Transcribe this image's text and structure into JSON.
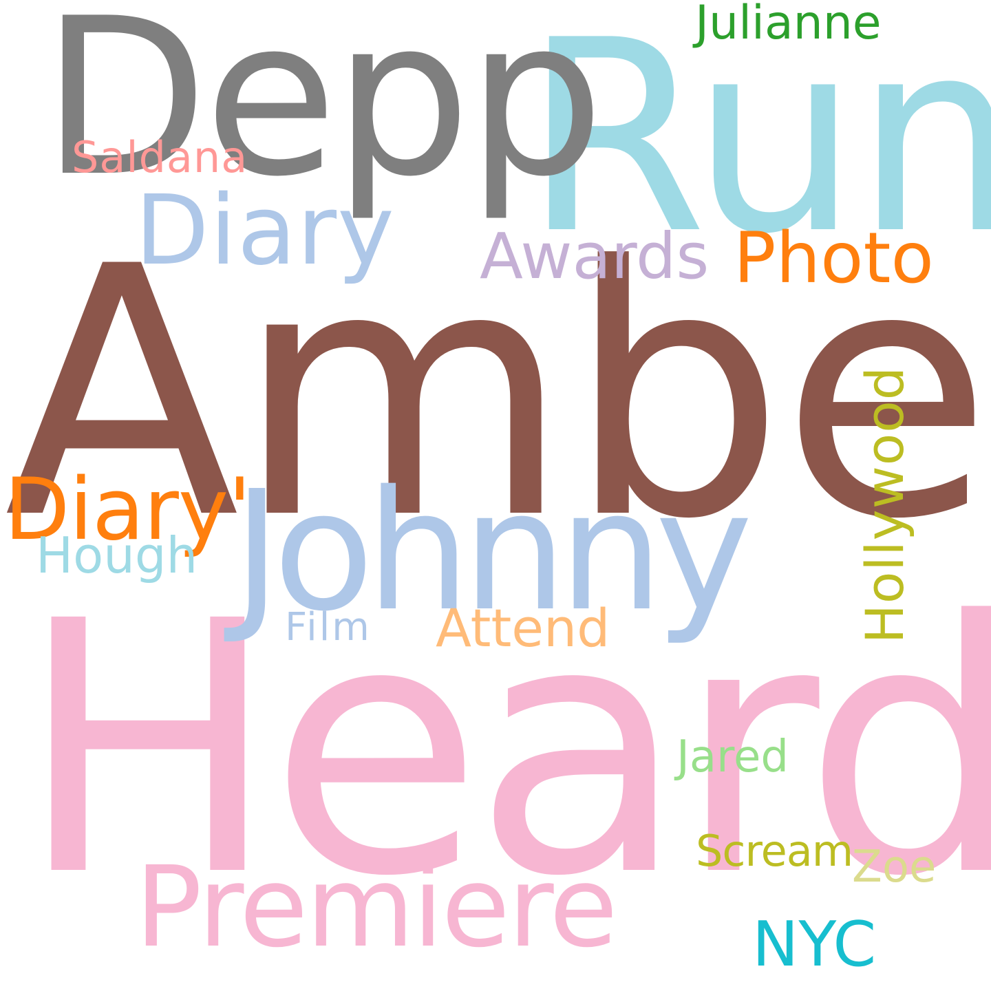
{
  "words": [
    {
      "id": "amber",
      "text": "Amber",
      "color": "#8c564b"
    },
    {
      "id": "heard",
      "text": "Heard",
      "color": "#f7b6d2"
    },
    {
      "id": "rum",
      "text": "Rum",
      "color": "#9edae5"
    },
    {
      "id": "depp",
      "text": "Depp",
      "color": "#7f7f7f"
    },
    {
      "id": "johnny",
      "text": "Johnny",
      "color": "#aec7e8"
    },
    {
      "id": "premiere",
      "text": "Premiere",
      "color": "#f7b6d2"
    },
    {
      "id": "diary",
      "text": "Diary",
      "color": "#aec7e8"
    },
    {
      "id": "diary-quote",
      "text": "Diary'",
      "color": "#ff7f0e"
    },
    {
      "id": "photo",
      "text": "Photo",
      "color": "#ff7f0e"
    },
    {
      "id": "awards",
      "text": "Awards",
      "color": "#c5b0d5"
    },
    {
      "id": "hollywood",
      "text": "Hollywood",
      "color": "#bcbd22"
    },
    {
      "id": "attend",
      "text": "Attend",
      "color": "#ffbb78"
    },
    {
      "id": "nyc",
      "text": "NYC",
      "color": "#17becf"
    },
    {
      "id": "hough",
      "text": "Hough",
      "color": "#9edae5"
    },
    {
      "id": "film",
      "text": "Film",
      "color": "#aec7e8"
    },
    {
      "id": "jared",
      "text": "Jared",
      "color": "#98df8a"
    },
    {
      "id": "scream",
      "text": "Scream",
      "color": "#bcbd22"
    },
    {
      "id": "zoe",
      "text": "Zoe",
      "color": "#dbdb8d"
    },
    {
      "id": "julianne",
      "text": "Julianne",
      "color": "#2ca02c"
    },
    {
      "id": "saldana",
      "text": "Saldana",
      "color": "#ff9896"
    }
  ]
}
